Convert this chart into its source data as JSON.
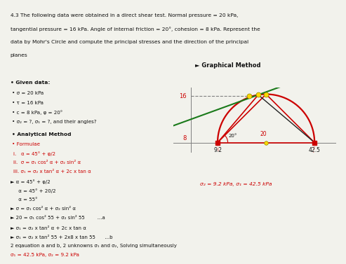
{
  "title_line1": "4.3 The following data were obtained in a direct shear test. Normal pressure = 20 kPa,",
  "title_line2": "tangential pressure = 16 kPa. Angle of internal friction = 20°, cohesion = 8 kPa. Represent the",
  "title_line3": "data by Mohr's Circle and compute the principal stresses and the direction of the principal",
  "title_line4": "planes",
  "graphical_label": "► Graphical Method",
  "given_data_header": "Given data:",
  "given_items": [
    "σ = 20 kPa",
    "τ = 16 kPa",
    "c = 8 kPa, φ = 20°",
    "σ₂ = ?, σ₁ = ?, and their angles?"
  ],
  "analytical_header": "Analytical Method",
  "formulae_header": "Formulae",
  "formulae": [
    "i.   α = 45° + φ/2",
    "ii.  σ = σ₁ cos² α + σ₂ sin² α",
    "iii. σ₁ = σ₂ x tan² α + 2c x tan α"
  ],
  "steps": [
    "► α = 45° + φ/2",
    "     α = 45° + 20/2",
    "     α = 55°",
    "► σ = σ₁ cos² α + σ₂ sin² α",
    "► 20 = σ₁ cos² 55 + σ₂ sin² 55        ...a"
  ],
  "result_label": "σ₂ = 9.2 kPa, σ₁ = 42.5 kPa",
  "steps2": [
    "► σ₁ = σ₂ x tan² α + 2c x tan α",
    "► σ₁ = σ₂ x tan² 55 + 2x8 x tan 55      ...b",
    "2 eqauation a and b, 2 unknowns σ₁ and σ₂, Solving simultaneously"
  ],
  "final_line": "σ₁ = 42.5 kPa, σ₂ = 9.2 kPa",
  "mohr_sigma1": 42.5,
  "mohr_sigma2": 9.2,
  "mohr_sigma": 20,
  "mohr_tau": 16,
  "mohr_c": 8,
  "mohr_phi_deg": 20,
  "bg_color": "#f2f2ec",
  "text_color": "#111111",
  "red_color": "#cc0000",
  "green_color": "#1a7a1a",
  "yellow_circle_color": "#FFD700"
}
